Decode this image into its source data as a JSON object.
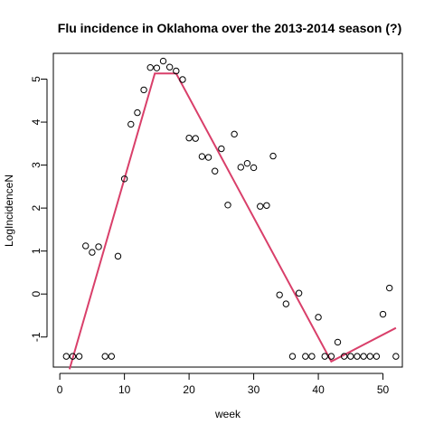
{
  "chart_data": {
    "type": "scatter",
    "title": "Flu incidence in Oklahoma over the 2013-2014 season (?)",
    "xlabel": "week",
    "ylabel": "LogIncidenceN",
    "xlim": [
      -1,
      53
    ],
    "ylim": [
      -1.7,
      5.6
    ],
    "x_ticks": [
      0,
      10,
      20,
      30,
      40,
      50
    ],
    "y_ticks": [
      -1,
      0,
      1,
      2,
      3,
      4,
      5
    ],
    "grid": false,
    "legend": "none",
    "series": [
      {
        "kind": "points",
        "marker": "open-circle",
        "color": "#000000",
        "points": [
          [
            1,
            -1.45
          ],
          [
            2,
            -1.45
          ],
          [
            3,
            -1.45
          ],
          [
            4,
            1.12
          ],
          [
            5,
            0.97
          ],
          [
            6,
            1.1
          ],
          [
            7,
            -1.45
          ],
          [
            8,
            -1.45
          ],
          [
            9,
            0.88
          ],
          [
            10,
            2.68
          ],
          [
            11,
            3.95
          ],
          [
            12,
            4.22
          ],
          [
            13,
            4.75
          ],
          [
            14,
            5.27
          ],
          [
            15,
            5.26
          ],
          [
            16,
            5.42
          ],
          [
            17,
            5.28
          ],
          [
            18,
            5.19
          ],
          [
            19,
            4.99
          ],
          [
            20,
            3.63
          ],
          [
            21,
            3.62
          ],
          [
            22,
            3.2
          ],
          [
            23,
            3.18
          ],
          [
            24,
            2.86
          ],
          [
            25,
            3.38
          ],
          [
            26,
            2.07
          ],
          [
            27,
            3.72
          ],
          [
            28,
            2.95
          ],
          [
            29,
            3.04
          ],
          [
            30,
            2.94
          ],
          [
            31,
            2.04
          ],
          [
            32,
            2.06
          ],
          [
            33,
            3.21
          ],
          [
            34,
            -0.02
          ],
          [
            35,
            -0.23
          ],
          [
            36,
            -1.45
          ],
          [
            37,
            0.02
          ],
          [
            38,
            -1.45
          ],
          [
            39,
            -1.45
          ],
          [
            40,
            -0.54
          ],
          [
            41,
            -1.45
          ],
          [
            42,
            -1.45
          ],
          [
            43,
            -1.12
          ],
          [
            44,
            -1.45
          ],
          [
            45,
            -1.45
          ],
          [
            46,
            -1.45
          ],
          [
            47,
            -1.45
          ],
          [
            48,
            -1.45
          ],
          [
            49,
            -1.45
          ],
          [
            50,
            -0.47
          ],
          [
            51,
            0.14
          ],
          [
            52,
            -1.45
          ]
        ]
      },
      {
        "kind": "line",
        "color": "#d93f6a",
        "points": [
          [
            1.5,
            -1.75
          ],
          [
            14.7,
            5.13
          ],
          [
            18,
            5.13
          ],
          [
            42,
            -1.57
          ],
          [
            52,
            -0.79
          ]
        ]
      }
    ]
  }
}
